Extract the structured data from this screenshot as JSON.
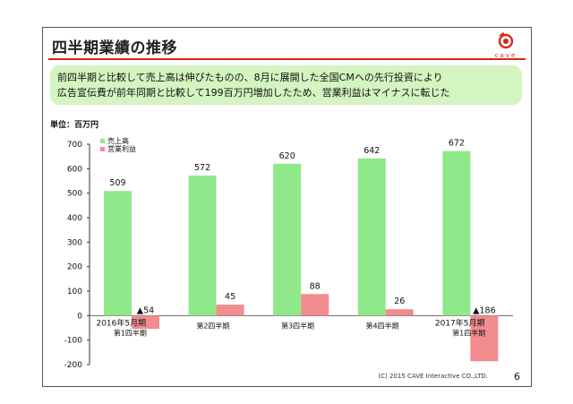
{
  "slide": {
    "title": "四半期業績の推移",
    "logo_text": "cave",
    "banner_line1": "前四半期と比較して売上高は伸びたものの、8月に展開した全国CMへの先行投資により",
    "banner_line2": "広告宣伝費が前年同期と比較して199百万円増加したため、営業利益はマイナスに転じた",
    "footer": "(C) 2015 CAVE Interactive CO.,LTD.",
    "page_number": "6"
  },
  "colors": {
    "sales": "#8fe88a",
    "profit": "#f28c8f",
    "accent": "#d8261c",
    "banner": "#d4f4c0"
  },
  "chart_data": {
    "type": "bar",
    "title": "",
    "unit_label": "単位：百万円",
    "xlabel": "",
    "ylabel": "",
    "ylim": [
      -200,
      700
    ],
    "yticks": [
      700,
      600,
      500,
      400,
      300,
      200,
      100,
      0,
      -100,
      -200
    ],
    "categories": [
      [
        "2016年5月期",
        "第1四半期"
      ],
      [
        "第2四半期"
      ],
      [
        "第3四半期"
      ],
      [
        "第4四半期"
      ],
      [
        "2017年5月期",
        "第1四半期"
      ]
    ],
    "series": [
      {
        "name": "売上高",
        "values": [
          509,
          572,
          620,
          642,
          672
        ],
        "labels": [
          "509",
          "572",
          "620",
          "642",
          "672"
        ]
      },
      {
        "name": "営業利益",
        "values": [
          -54,
          45,
          88,
          26,
          -186
        ],
        "labels": [
          "▲54",
          "45",
          "88",
          "26",
          "▲186"
        ]
      }
    ],
    "legend": "top-left",
    "grid": false
  }
}
